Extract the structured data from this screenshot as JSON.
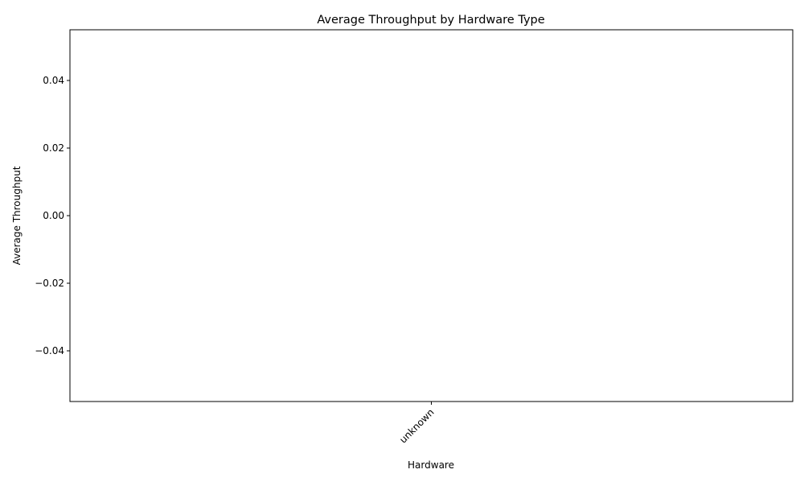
{
  "chart_data": {
    "type": "bar",
    "title": "Average Throughput by Hardware Type",
    "xlabel": "Hardware",
    "ylabel": "Average Throughput",
    "categories": [
      "unknown"
    ],
    "values": [
      0
    ],
    "ylim": [
      -0.055,
      0.055
    ],
    "yticks": [
      -0.04,
      -0.02,
      0.0,
      0.02,
      0.04
    ],
    "ytick_labels": [
      "−0.04",
      "−0.02",
      "0.00",
      "0.02",
      "0.04"
    ],
    "xtick_rotation_deg": 45,
    "grid": false,
    "legend": "none"
  }
}
